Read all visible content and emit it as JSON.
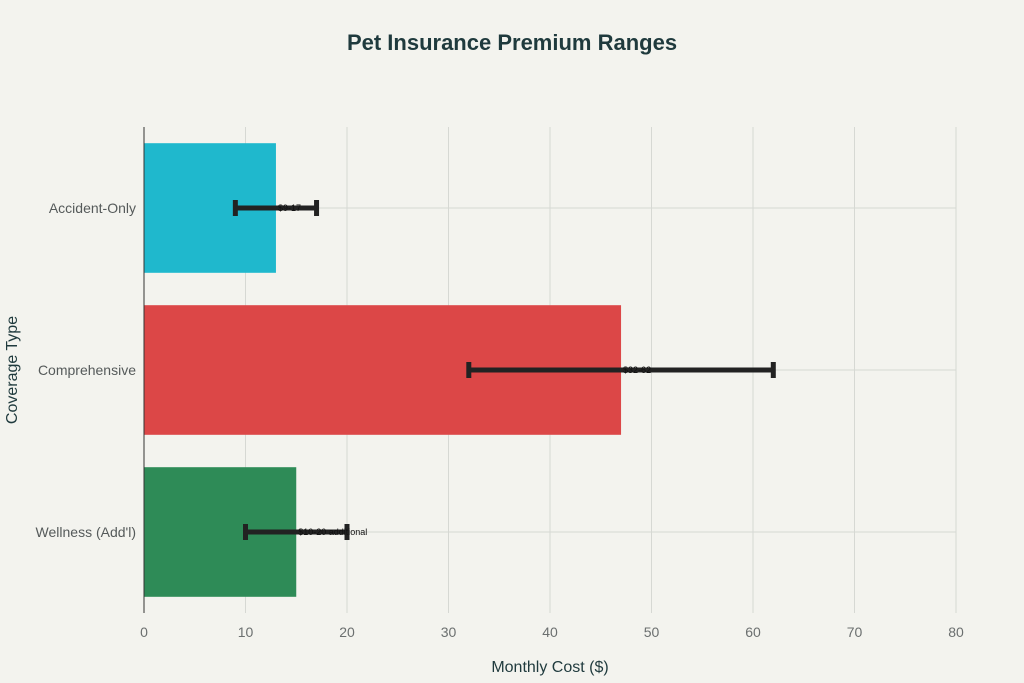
{
  "chart_data": {
    "type": "bar",
    "orientation": "horizontal",
    "title": "Pet Insurance Premium Ranges",
    "xlabel": "Monthly Cost ($)",
    "ylabel": "Coverage Type",
    "xlim": [
      0,
      80
    ],
    "xticks": [
      0,
      10,
      20,
      30,
      40,
      50,
      60,
      70,
      80
    ],
    "grid": true,
    "categories": [
      "Accident-Only",
      "Comprehensive",
      "Wellness (Add'l)"
    ],
    "values": [
      13,
      47,
      15
    ],
    "error_low": [
      9,
      32,
      10
    ],
    "error_high": [
      17,
      62,
      20
    ],
    "annotations": [
      "$9-17",
      "$32-62",
      "$10-20 additional"
    ],
    "colors": [
      "#1fb8cd",
      "#dc4747",
      "#2e8b57"
    ],
    "error_bar_color": "#222222"
  }
}
